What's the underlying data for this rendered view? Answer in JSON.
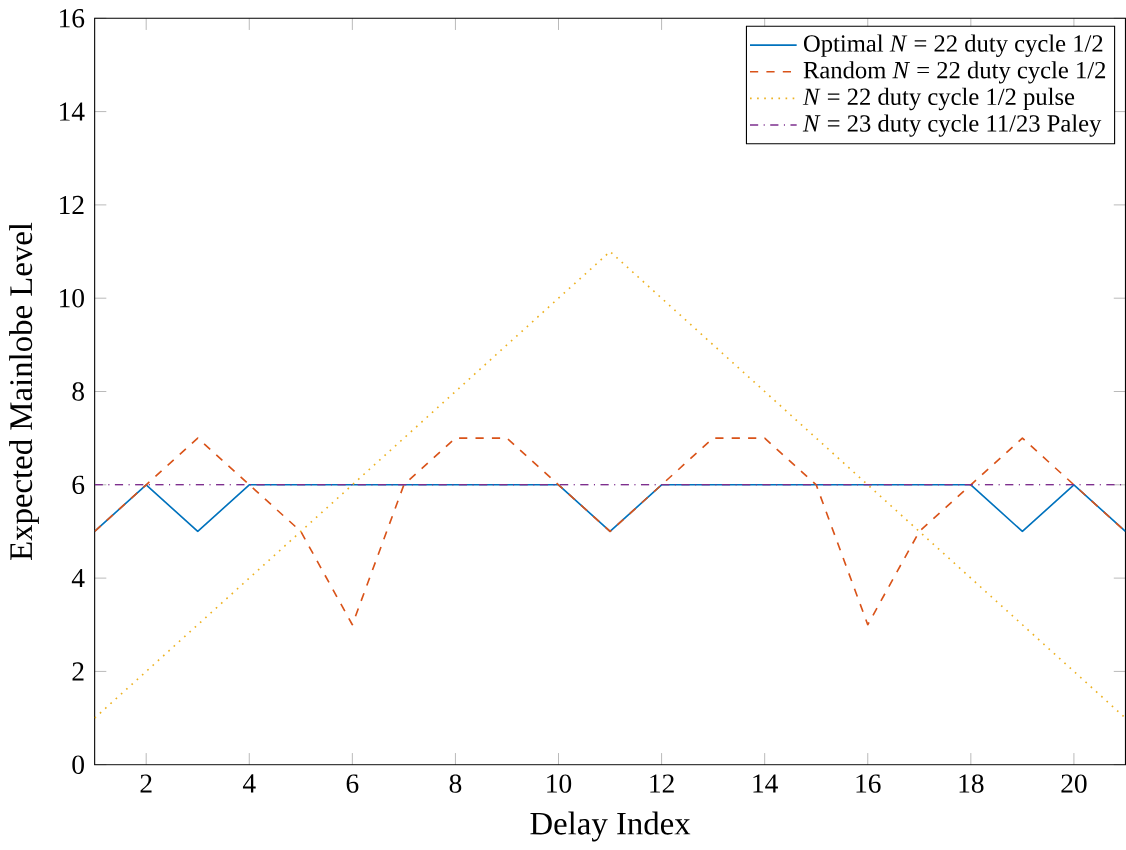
{
  "chart_data": {
    "type": "line",
    "xlabel": "Delay Index",
    "ylabel": "Expected Mainlobe Level",
    "x": [
      1,
      2,
      3,
      4,
      5,
      6,
      7,
      8,
      9,
      10,
      11,
      12,
      13,
      14,
      15,
      16,
      17,
      18,
      19,
      20,
      21
    ],
    "series": [
      {
        "name": "Optimal *N* = 22 duty cycle 1/2",
        "color": "#0072bd",
        "line_style": "solid",
        "values": [
          5,
          6,
          5,
          6,
          6,
          6,
          6,
          6,
          6,
          6,
          5,
          6,
          6,
          6,
          6,
          6,
          6,
          6,
          5,
          6,
          5
        ]
      },
      {
        "name": "Random *N* = 22 duty cycle 1/2",
        "color": "#d95319",
        "line_style": "dashed",
        "values": [
          5,
          6,
          7,
          6,
          5,
          3,
          6,
          7,
          7,
          6,
          5,
          6,
          7,
          7,
          6,
          3,
          5,
          6,
          7,
          6,
          5
        ]
      },
      {
        "name": "*N* = 22 duty cycle 1/2 pulse",
        "color": "#edb120",
        "line_style": "dotted",
        "values": [
          1,
          2,
          3,
          4,
          5,
          6,
          7,
          8,
          9,
          10,
          11,
          10,
          9,
          8,
          7,
          6,
          5,
          4,
          3,
          2,
          1
        ]
      },
      {
        "name": "*N* = 23 duty cycle 11/23 Paley",
        "color": "#7e2f8e",
        "line_style": "dashdot",
        "values": [
          6,
          6,
          6,
          6,
          6,
          6,
          6,
          6,
          6,
          6,
          6,
          6,
          6,
          6,
          6,
          6,
          6,
          6,
          6,
          6,
          6
        ]
      }
    ],
    "xlim": [
      1,
      21
    ],
    "ylim": [
      0,
      16
    ],
    "xticks": [
      2,
      4,
      6,
      8,
      10,
      12,
      14,
      16,
      18,
      20
    ],
    "yticks": [
      0,
      2,
      4,
      6,
      8,
      10,
      12,
      14,
      16
    ],
    "legend": "top right",
    "grid": false,
    "marker": "none"
  }
}
